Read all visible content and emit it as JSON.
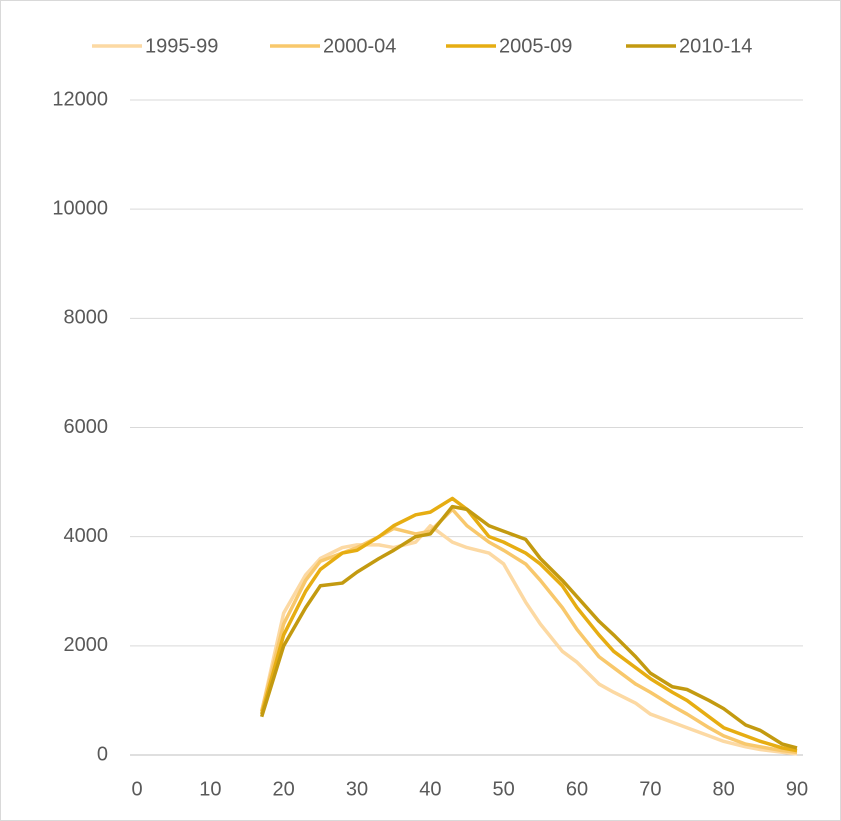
{
  "chart_data": {
    "type": "line",
    "x": [
      17,
      20,
      23,
      25,
      28,
      30,
      33,
      35,
      38,
      40,
      43,
      45,
      48,
      50,
      53,
      55,
      58,
      60,
      63,
      65,
      68,
      70,
      73,
      75,
      78,
      80,
      83,
      85,
      88,
      90
    ],
    "series": [
      {
        "name": "1995-99",
        "color": "#fcd9a3",
        "values": [
          800,
          2600,
          3300,
          3600,
          3800,
          3850,
          3850,
          3800,
          3900,
          4200,
          3900,
          3800,
          3700,
          3500,
          2800,
          2400,
          1900,
          1700,
          1300,
          1150,
          950,
          750,
          600,
          500,
          350,
          250,
          150,
          100,
          50,
          20
        ]
      },
      {
        "name": "2000-04",
        "color": "#f8c86c",
        "values": [
          800,
          2400,
          3200,
          3550,
          3700,
          3800,
          4000,
          4150,
          4050,
          4100,
          4500,
          4200,
          3900,
          3750,
          3500,
          3200,
          2700,
          2300,
          1800,
          1600,
          1300,
          1150,
          900,
          750,
          500,
          350,
          200,
          150,
          80,
          50
        ]
      },
      {
        "name": "2005-09",
        "color": "#e6ad12",
        "values": [
          750,
          2200,
          3000,
          3400,
          3700,
          3750,
          4000,
          4200,
          4400,
          4450,
          4700,
          4500,
          4000,
          3900,
          3700,
          3500,
          3100,
          2700,
          2200,
          1900,
          1600,
          1400,
          1150,
          1000,
          700,
          500,
          350,
          250,
          130,
          80
        ]
      },
      {
        "name": "2010-14",
        "color": "#c39a10",
        "values": [
          700,
          2000,
          2700,
          3100,
          3150,
          3350,
          3600,
          3750,
          4000,
          4050,
          4550,
          4500,
          4200,
          4100,
          3950,
          3600,
          3200,
          2900,
          2450,
          2200,
          1800,
          1500,
          1250,
          1200,
          1000,
          850,
          550,
          450,
          200,
          130
        ]
      }
    ],
    "xlim": [
      0,
      90
    ],
    "xticks": [
      0,
      10,
      20,
      30,
      40,
      50,
      60,
      70,
      80,
      90
    ],
    "ylim": [
      0,
      12000
    ],
    "yticks": [
      0,
      2000,
      4000,
      6000,
      8000,
      10000,
      12000
    ],
    "grid": true,
    "legend": "top"
  }
}
